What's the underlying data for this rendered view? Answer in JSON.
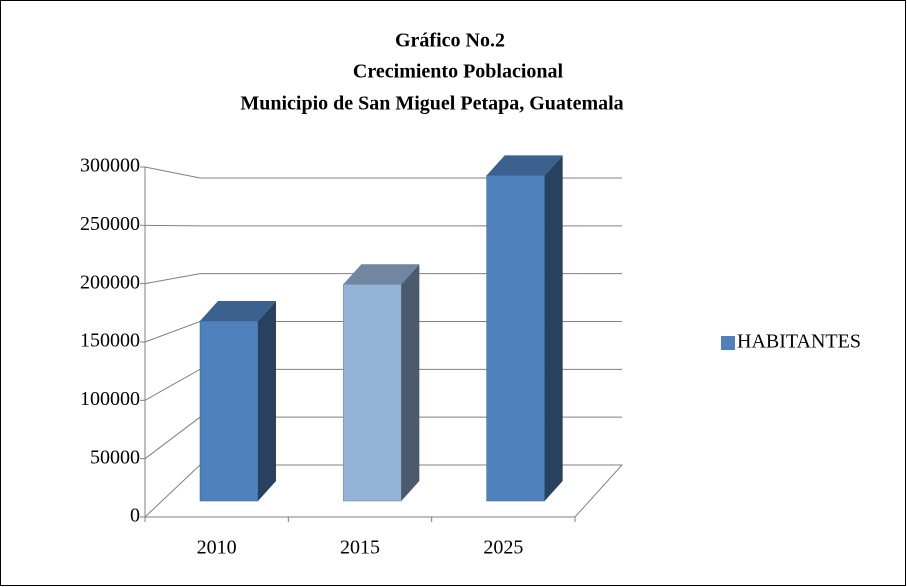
{
  "chart_data": {
    "type": "bar3d",
    "title": [
      "Gráfico No.2",
      "Crecimiento Poblacional",
      "Municipio de San Miguel Petapa, Guatemala"
    ],
    "categories": [
      "2010",
      "2015",
      "2025"
    ],
    "series": [
      {
        "name": "HABITANTES",
        "color": "#4f81bd",
        "values": [
          157000,
          189000,
          284000
        ]
      }
    ],
    "point_colors": [
      "#4f81bd",
      "#95b3d7",
      "#4f81bd"
    ],
    "ylim": [
      0,
      300000
    ],
    "yticks": [
      0,
      50000,
      100000,
      150000,
      200000,
      250000,
      300000
    ],
    "grid": true,
    "legend": "right"
  }
}
